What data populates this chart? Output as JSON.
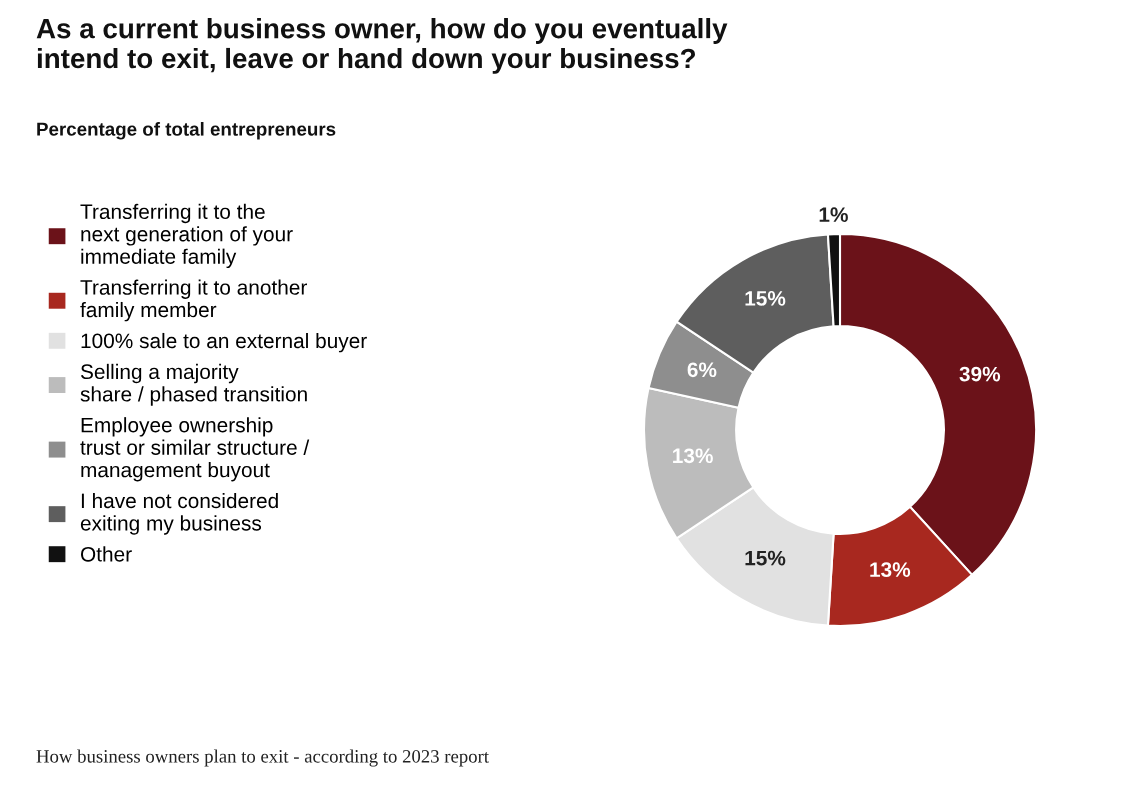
{
  "chart_data": {
    "type": "donut",
    "title": "As a current business owner, how do you eventually\nintend to exit, leave or hand down your business?",
    "subtitle": "Percentage of total entrepreneurs",
    "categories": [
      "Transferring it to the\nnext generation of your\nimmediate family",
      "Transferring it to another\nfamily member",
      "100% sale to an external buyer",
      "Selling a majority\nshare / phased transition",
      "Employee ownership\ntrust or similar structure /\nmanagement buyout",
      "I have not considered\nexiting my business",
      "Other"
    ],
    "values": [
      39,
      13,
      15,
      13,
      6,
      15,
      1
    ],
    "colors": [
      "#6b1219",
      "#a8281f",
      "#e1e1e1",
      "#bcbcbc",
      "#8e8e8e",
      "#5e5e5e",
      "#111111"
    ],
    "value_labels": [
      "39%",
      "13%",
      "15%",
      "13%",
      "6%",
      "15%",
      "1%"
    ],
    "legend": "left",
    "annotations": [
      "How business owners plan to exit - according to 2023 report"
    ]
  }
}
